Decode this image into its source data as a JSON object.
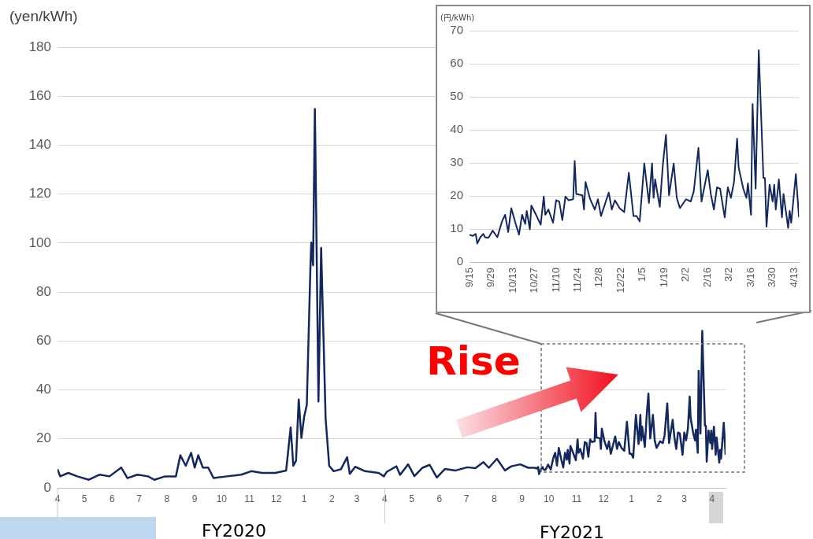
{
  "chart_data": [
    {
      "type": "line",
      "ylabel": "(yen/kWh)",
      "marker": "none",
      "line_style": "solid",
      "grid": "y",
      "annotations": [
        "FY2020",
        "FY2021",
        "Rise"
      ],
      "xlim": [
        "2020-04-01",
        "2022-04-16"
      ],
      "ylim": [
        0,
        180
      ],
      "yticks": [
        0,
        20,
        40,
        60,
        80,
        100,
        120,
        140,
        160,
        180
      ],
      "xticks": [
        {
          "value": "2020-04-01",
          "label": "4"
        },
        {
          "value": "2020-05-01",
          "label": "5"
        },
        {
          "value": "2020-06-01",
          "label": "6"
        },
        {
          "value": "2020-07-01",
          "label": "7"
        },
        {
          "value": "2020-08-01",
          "label": "8"
        },
        {
          "value": "2020-09-01",
          "label": "9"
        },
        {
          "value": "2020-10-01",
          "label": "10"
        },
        {
          "value": "2020-11-01",
          "label": "11"
        },
        {
          "value": "2020-12-01",
          "label": "12"
        },
        {
          "value": "2021-01-01",
          "label": "1"
        },
        {
          "value": "2021-02-01",
          "label": "2"
        },
        {
          "value": "2021-03-01",
          "label": "3"
        },
        {
          "value": "2021-04-01",
          "label": "4"
        },
        {
          "value": "2021-05-01",
          "label": "5"
        },
        {
          "value": "2021-06-01",
          "label": "6"
        },
        {
          "value": "2021-07-01",
          "label": "7"
        },
        {
          "value": "2021-08-01",
          "label": "8"
        },
        {
          "value": "2021-09-01",
          "label": "9"
        },
        {
          "value": "2021-10-01",
          "label": "10"
        },
        {
          "value": "2021-11-01",
          "label": "11"
        },
        {
          "value": "2021-12-01",
          "label": "12"
        },
        {
          "value": "2022-01-01",
          "label": "1"
        },
        {
          "value": "2022-02-01",
          "label": "2"
        },
        {
          "value": "2022-03-01",
          "label": "3"
        },
        {
          "value": "2022-04-01",
          "label": "4"
        }
      ],
      "x": [
        "2020-04-01",
        "2020-04-04",
        "2020-04-13",
        "2020-04-23",
        "2020-05-06",
        "2020-05-18",
        "2020-05-29",
        "2020-06-11",
        "2020-06-18",
        "2020-06-29",
        "2020-07-11",
        "2020-07-18",
        "2020-07-30",
        "2020-08-11",
        "2020-08-16",
        "2020-08-22",
        "2020-08-28",
        "2020-09-01",
        "2020-09-05",
        "2020-09-10",
        "2020-09-16",
        "2020-09-22",
        "2020-10-07",
        "2020-10-23",
        "2020-11-03",
        "2020-11-15",
        "2020-11-30",
        "2020-12-12",
        "2020-12-17",
        "2020-12-20",
        "2020-12-23",
        "2020-12-26",
        "2020-12-29",
        "2021-01-01",
        "2021-01-04",
        "2021-01-08",
        "2021-01-09",
        "2021-01-11",
        "2021-01-13",
        "2021-01-14",
        "2021-01-17",
        "2021-01-20",
        "2021-01-25",
        "2021-01-29",
        "2021-02-03",
        "2021-02-11",
        "2021-02-18",
        "2021-02-21",
        "2021-02-27",
        "2021-03-10",
        "2021-03-25",
        "2021-03-31",
        "2021-04-03",
        "2021-04-14",
        "2021-04-18",
        "2021-04-27",
        "2021-05-04",
        "2021-05-13",
        "2021-05-21",
        "2021-05-29",
        "2021-06-07",
        "2021-06-19",
        "2021-07-02",
        "2021-07-11",
        "2021-07-20",
        "2021-07-26",
        "2021-08-04",
        "2021-08-13",
        "2021-08-20",
        "2021-08-30",
        "2021-09-08",
        "2021-09-15",
        "2021-09-17",
        "2021-09-19",
        "2021-09-20",
        "2021-09-22",
        "2021-09-24",
        "2021-09-25",
        "2021-09-27",
        "2021-09-28",
        "2021-09-30",
        "2021-10-03",
        "2021-10-06",
        "2021-10-08",
        "2021-10-10",
        "2021-10-12",
        "2021-10-15",
        "2021-10-17",
        "2021-10-19",
        "2021-10-21",
        "2021-10-22",
        "2021-10-24",
        "2021-10-25",
        "2021-10-28",
        "2021-10-31",
        "2021-11-02",
        "2021-11-03",
        "2021-11-05",
        "2021-11-08",
        "2021-11-10",
        "2021-11-12",
        "2021-11-14",
        "2021-11-16",
        "2021-11-18",
        "2021-11-21",
        "2021-11-22",
        "2021-11-23",
        "2021-11-27",
        "2021-11-28",
        "2021-11-29",
        "2021-12-02",
        "2021-12-05",
        "2021-12-07",
        "2021-12-09",
        "2021-12-14",
        "2021-12-16",
        "2021-12-18",
        "2021-12-21",
        "2021-12-24",
        "2021-12-27",
        "2021-12-30",
        "2022-01-01",
        "2022-01-03",
        "2022-01-06",
        "2022-01-09",
        "2022-01-11",
        "2022-01-12",
        "2022-01-13",
        "2022-01-16",
        "2022-01-18",
        "2022-01-20",
        "2022-01-22",
        "2022-01-25",
        "2022-01-27",
        "2022-01-29",
        "2022-02-02",
        "2022-02-05",
        "2022-02-07",
        "2022-02-10",
        "2022-02-12",
        "2022-02-16",
        "2022-02-18",
        "2022-02-20",
        "2022-02-22",
        "2022-02-24",
        "2022-02-27",
        "2022-03-01",
        "2022-03-03",
        "2022-03-05",
        "2022-03-07",
        "2022-03-08",
        "2022-03-11",
        "2022-03-13",
        "2022-03-14",
        "2022-03-16",
        "2022-03-17",
        "2022-03-19",
        "2022-03-21",
        "2022-03-24",
        "2022-03-25",
        "2022-03-26",
        "2022-03-28",
        "2022-03-30",
        "2022-03-31",
        "2022-04-01",
        "2022-04-03",
        "2022-04-05",
        "2022-04-06",
        "2022-04-09",
        "2022-04-10",
        "2022-04-11",
        "2022-04-13",
        "2022-04-14",
        "2022-04-16"
      ],
      "series": [
        {
          "color": "#13285e",
          "values": [
            7.6,
            4.7,
            6.1,
            4.7,
            3.3,
            5.4,
            4.7,
            8.3,
            4.0,
            5.4,
            4.7,
            3.3,
            4.7,
            4.7,
            13.3,
            9.0,
            14.3,
            8.3,
            13.3,
            8.3,
            8.3,
            4.0,
            4.7,
            5.4,
            6.8,
            6.1,
            6.1,
            7.1,
            24.7,
            9.0,
            11.1,
            36.1,
            20.4,
            28.9,
            33.9,
            89.5,
            100.2,
            90.9,
            154.8,
            126.6,
            35.3,
            98.0,
            28.2,
            9.0,
            6.8,
            7.6,
            12.5,
            5.7,
            8.6,
            6.8,
            6.1,
            4.7,
            6.5,
            8.8,
            5.3,
            9.6,
            4.8,
            8.2,
            9.4,
            4.2,
            7.7,
            7.1,
            8.4,
            8.0,
            10.5,
            8.2,
            11.9,
            7.1,
            8.8,
            9.6,
            8.2,
            8.2,
            7.9,
            8.5,
            5.6,
            7.5,
            8.5,
            7.5,
            7.3,
            7.9,
            9.5,
            7.5,
            12.3,
            14.3,
            9.1,
            16.3,
            11.3,
            8.3,
            14.3,
            11.5,
            15.5,
            9.9,
            17.1,
            14.3,
            11.3,
            19.8,
            14.3,
            15.9,
            11.9,
            18.7,
            18.3,
            12.7,
            19.8,
            18.7,
            19.0,
            30.6,
            20.6,
            20.2,
            15.9,
            24.2,
            19.0,
            15.9,
            19.0,
            13.9,
            21.0,
            15.9,
            18.7,
            16.3,
            15.1,
            27.0,
            13.9,
            13.9,
            12.3,
            29.8,
            17.9,
            29.8,
            19.4,
            25.0,
            16.7,
            29.4,
            38.5,
            20.2,
            29.8,
            19.4,
            16.3,
            19.0,
            18.3,
            21.4,
            34.5,
            18.3,
            27.8,
            20.6,
            15.9,
            22.6,
            22.2,
            13.5,
            22.6,
            19.4,
            24.2,
            37.3,
            28.6,
            22.2,
            19.4,
            23.8,
            14.3,
            47.8,
            22.2,
            64.1,
            25.4,
            25.4,
            10.7,
            23.4,
            18.3,
            23.4,
            15.9,
            25.0,
            13.5,
            20.6,
            10.3,
            15.5,
            11.9,
            21.8,
            26.6,
            13.5
          ]
        }
      ]
    },
    {
      "type": "line",
      "ylabel": "(円/kWh)",
      "marker": "none",
      "line_style": "solid",
      "grid": "y",
      "xlim": [
        "2021-09-15",
        "2022-04-16"
      ],
      "ylim": [
        0,
        70
      ],
      "yticks": [
        0,
        10,
        20,
        30,
        40,
        50,
        60,
        70
      ],
      "xticks": [
        {
          "value": "2021-09-15",
          "label": "9/15"
        },
        {
          "value": "2021-09-29",
          "label": "9/29"
        },
        {
          "value": "2021-10-13",
          "label": "10/13"
        },
        {
          "value": "2021-10-27",
          "label": "10/27"
        },
        {
          "value": "2021-11-10",
          "label": "11/10"
        },
        {
          "value": "2021-11-24",
          "label": "11/24"
        },
        {
          "value": "2021-12-08",
          "label": "12/8"
        },
        {
          "value": "2021-12-22",
          "label": "12/22"
        },
        {
          "value": "2022-01-05",
          "label": "1/5"
        },
        {
          "value": "2022-01-19",
          "label": "1/19"
        },
        {
          "value": "2022-02-02",
          "label": "2/2"
        },
        {
          "value": "2022-02-16",
          "label": "2/16"
        },
        {
          "value": "2022-03-02",
          "label": "3/2"
        },
        {
          "value": "2022-03-16",
          "label": "3/16"
        },
        {
          "value": "2022-03-30",
          "label": "3/30"
        },
        {
          "value": "2022-04-13",
          "label": "4/13"
        }
      ],
      "x": [
        "2021-09-15",
        "2021-09-17",
        "2021-09-19",
        "2021-09-20",
        "2021-09-22",
        "2021-09-24",
        "2021-09-25",
        "2021-09-27",
        "2021-09-28",
        "2021-09-30",
        "2021-10-03",
        "2021-10-06",
        "2021-10-08",
        "2021-10-10",
        "2021-10-12",
        "2021-10-15",
        "2021-10-17",
        "2021-10-19",
        "2021-10-21",
        "2021-10-22",
        "2021-10-24",
        "2021-10-25",
        "2021-10-28",
        "2021-10-31",
        "2021-11-02",
        "2021-11-03",
        "2021-11-05",
        "2021-11-08",
        "2021-11-10",
        "2021-11-12",
        "2021-11-14",
        "2021-11-16",
        "2021-11-18",
        "2021-11-21",
        "2021-11-22",
        "2021-11-23",
        "2021-11-27",
        "2021-11-28",
        "2021-11-29",
        "2021-12-02",
        "2021-12-05",
        "2021-12-07",
        "2021-12-09",
        "2021-12-14",
        "2021-12-16",
        "2021-12-18",
        "2021-12-21",
        "2021-12-24",
        "2021-12-27",
        "2021-12-30",
        "2022-01-01",
        "2022-01-03",
        "2022-01-06",
        "2022-01-09",
        "2022-01-11",
        "2022-01-12",
        "2022-01-13",
        "2022-01-16",
        "2022-01-18",
        "2022-01-20",
        "2022-01-22",
        "2022-01-25",
        "2022-01-27",
        "2022-01-29",
        "2022-02-02",
        "2022-02-05",
        "2022-02-07",
        "2022-02-10",
        "2022-02-12",
        "2022-02-16",
        "2022-02-18",
        "2022-02-20",
        "2022-02-22",
        "2022-02-24",
        "2022-02-27",
        "2022-03-01",
        "2022-03-03",
        "2022-03-05",
        "2022-03-07",
        "2022-03-08",
        "2022-03-11",
        "2022-03-13",
        "2022-03-14",
        "2022-03-16",
        "2022-03-17",
        "2022-03-19",
        "2022-03-21",
        "2022-03-24",
        "2022-03-25",
        "2022-03-26",
        "2022-03-28",
        "2022-03-30",
        "2022-03-31",
        "2022-04-01",
        "2022-04-03",
        "2022-04-05",
        "2022-04-06",
        "2022-04-09",
        "2022-04-10",
        "2022-04-11",
        "2022-04-13",
        "2022-04-14",
        "2022-04-16"
      ],
      "series": [
        {
          "color": "#13285e",
          "values": [
            8.2,
            7.9,
            8.5,
            5.6,
            7.5,
            8.5,
            7.5,
            7.3,
            7.9,
            9.5,
            7.5,
            12.3,
            14.3,
            9.1,
            16.3,
            11.3,
            8.3,
            14.3,
            11.5,
            15.5,
            9.9,
            17.1,
            14.3,
            11.3,
            19.8,
            14.3,
            15.9,
            11.9,
            18.7,
            18.3,
            12.7,
            19.8,
            18.7,
            19.0,
            30.6,
            20.6,
            20.2,
            15.9,
            24.2,
            19.0,
            15.9,
            19.0,
            13.9,
            21.0,
            15.9,
            18.7,
            16.3,
            15.1,
            27.0,
            13.9,
            13.9,
            12.3,
            29.8,
            17.9,
            29.8,
            19.4,
            25.0,
            16.7,
            29.4,
            38.5,
            20.2,
            29.8,
            19.4,
            16.3,
            19.0,
            18.3,
            21.4,
            34.5,
            18.3,
            27.8,
            20.6,
            15.9,
            22.6,
            22.2,
            13.5,
            22.6,
            19.4,
            24.2,
            37.3,
            28.6,
            22.2,
            19.4,
            23.8,
            14.3,
            47.8,
            22.2,
            64.1,
            25.4,
            25.4,
            10.7,
            23.4,
            18.3,
            23.4,
            15.9,
            25.0,
            13.5,
            20.6,
            10.3,
            15.5,
            11.9,
            21.8,
            26.6,
            13.5
          ]
        }
      ]
    }
  ]
}
